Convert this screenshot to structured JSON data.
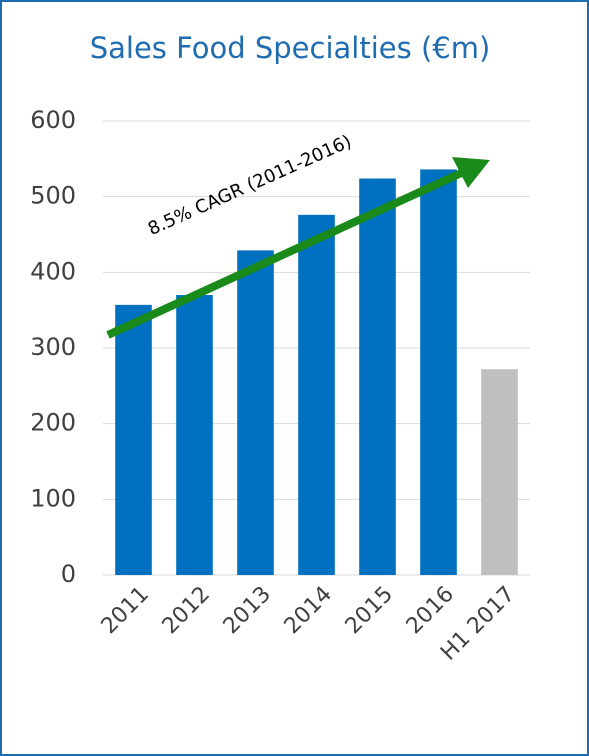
{
  "chart_data": {
    "type": "bar",
    "title": "Sales Food Specialties (€m)",
    "categories": [
      "2011",
      "2012",
      "2013",
      "2014",
      "2015",
      "2016",
      "H1 2017"
    ],
    "values": [
      357,
      370,
      429,
      476,
      524,
      536,
      272
    ],
    "colors": [
      "#0070c0",
      "#0070c0",
      "#0070c0",
      "#0070c0",
      "#0070c0",
      "#0070c0",
      "#bfbfbf"
    ],
    "ylim": [
      0,
      600
    ],
    "yticks": [
      0,
      100,
      200,
      300,
      400,
      500,
      600
    ],
    "grid": true,
    "annotation": "8.5% CAGR (2011-2016)"
  }
}
